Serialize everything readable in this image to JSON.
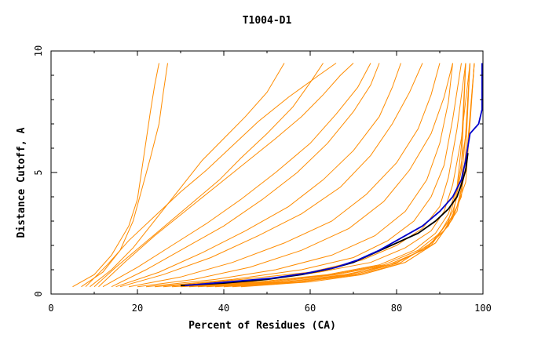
{
  "chart_data": {
    "type": "line",
    "title": "T1004-D1",
    "xlabel": "Percent of Residues (CA)",
    "ylabel": "Distance Cutoff, A",
    "xlim": [
      0,
      100
    ],
    "ylim": [
      0,
      10
    ],
    "x_ticks": [
      "0",
      "20",
      "40",
      "60",
      "80",
      "100"
    ],
    "y_ticks": [
      "0",
      "5",
      "10"
    ],
    "grid": false,
    "legend": "none",
    "colors": {
      "models": "#ff8c00",
      "highlight_blue": "#0000cc",
      "highlight_black": "#000000",
      "frame": "#000000"
    },
    "series": [
      {
        "color": "#ff8c00",
        "x": [
          5,
          10,
          14,
          18,
          20,
          21,
          22,
          23,
          24,
          25
        ],
        "y": [
          0.3,
          0.8,
          1.6,
          2.8,
          3.9,
          5.1,
          6.3,
          7.5,
          8.6,
          9.5
        ]
      },
      {
        "color": "#ff8c00",
        "x": [
          7,
          12,
          16,
          19,
          21,
          23,
          25,
          26,
          27
        ],
        "y": [
          0.3,
          0.9,
          1.8,
          3,
          4.3,
          5.6,
          7,
          8.3,
          9.5
        ]
      },
      {
        "color": "#ff8c00",
        "x": [
          9,
          14,
          19,
          23,
          27,
          31,
          35,
          40,
          45,
          50,
          54
        ],
        "y": [
          0.3,
          1,
          1.9,
          2.8,
          3.7,
          4.6,
          5.5,
          6.4,
          7.3,
          8.3,
          9.5
        ]
      },
      {
        "color": "#ff8c00",
        "x": [
          10,
          15,
          21,
          27,
          33,
          39,
          44,
          50,
          56,
          60,
          63
        ],
        "y": [
          0.3,
          1.1,
          2,
          2.9,
          3.8,
          4.7,
          5.6,
          6.6,
          7.7,
          8.7,
          9.5
        ]
      },
      {
        "color": "#ff8c00",
        "x": [
          8,
          13,
          18,
          24,
          30,
          36,
          42,
          48,
          55,
          62,
          66
        ],
        "y": [
          0.3,
          1.2,
          2.2,
          3.2,
          4.2,
          5.1,
          6.1,
          7.1,
          8.1,
          9,
          9.5
        ]
      },
      {
        "color": "#ff8c00",
        "x": [
          11,
          17,
          24,
          31,
          38,
          45,
          52,
          58,
          63,
          67,
          70
        ],
        "y": [
          0.3,
          1.3,
          2.4,
          3.4,
          4.4,
          5.4,
          6.4,
          7.3,
          8.2,
          9,
          9.5
        ]
      },
      {
        "color": "#ff8c00",
        "x": [
          12,
          20,
          28,
          36,
          44,
          52,
          60,
          66,
          71,
          74
        ],
        "y": [
          0.3,
          1.1,
          2,
          2.9,
          3.9,
          5,
          6.2,
          7.4,
          8.5,
          9.5
        ]
      },
      {
        "color": "#ff8c00",
        "x": [
          14,
          22,
          31,
          40,
          49,
          57,
          64,
          70,
          74,
          76
        ],
        "y": [
          0.3,
          1,
          1.9,
          2.8,
          3.9,
          5,
          6.2,
          7.5,
          8.6,
          9.5
        ]
      },
      {
        "color": "#ff8c00",
        "x": [
          15,
          25,
          35,
          45,
          55,
          63,
          70,
          76,
          79,
          81
        ],
        "y": [
          0.3,
          0.9,
          1.7,
          2.6,
          3.6,
          4.7,
          5.9,
          7.3,
          8.5,
          9.5
        ]
      },
      {
        "color": "#ff8c00",
        "x": [
          16,
          26,
          37,
          48,
          58,
          67,
          74,
          79,
          83,
          86
        ],
        "y": [
          0.3,
          0.8,
          1.5,
          2.4,
          3.3,
          4.4,
          5.7,
          7,
          8.3,
          9.5
        ]
      },
      {
        "color": "#ff8c00",
        "x": [
          18,
          30,
          42,
          54,
          65,
          73,
          80,
          85,
          88,
          90
        ],
        "y": [
          0.3,
          0.7,
          1.3,
          2.1,
          3,
          4.1,
          5.4,
          6.8,
          8.2,
          9.5
        ]
      },
      {
        "color": "#ff8c00",
        "x": [
          20,
          33,
          46,
          58,
          69,
          77,
          83,
          88,
          91,
          93
        ],
        "y": [
          0.3,
          0.6,
          1.1,
          1.8,
          2.7,
          3.8,
          5.1,
          6.6,
          8.1,
          9.5
        ]
      },
      {
        "color": "#ff8c00",
        "x": [
          22,
          38,
          52,
          65,
          75,
          82,
          87,
          90,
          92,
          93
        ],
        "y": [
          0.3,
          0.6,
          1,
          1.6,
          2.4,
          3.4,
          4.7,
          6.2,
          7.9,
          9.5
        ]
      },
      {
        "color": "#ff8c00",
        "x": [
          24,
          42,
          58,
          70,
          78,
          84,
          88,
          91,
          93,
          95
        ],
        "y": [
          0.3,
          0.6,
          1,
          1.5,
          2.2,
          3,
          4,
          5.3,
          7.2,
          9.5
        ]
      },
      {
        "color": "#ff8c00",
        "x": [
          26,
          44,
          60,
          72,
          80,
          86,
          90,
          92,
          94,
          96
        ],
        "y": [
          0.3,
          0.6,
          0.9,
          1.4,
          2,
          2.7,
          3.6,
          4.8,
          6.8,
          9.5
        ]
      },
      {
        "color": "#ff8c00",
        "x": [
          28,
          46,
          62,
          74,
          82,
          88,
          91,
          93,
          95,
          97
        ],
        "y": [
          0.3,
          0.5,
          0.9,
          1.3,
          1.9,
          2.6,
          3.4,
          4.5,
          6.4,
          9.5
        ]
      },
      {
        "color": "#ff8c00",
        "x": [
          30,
          48,
          64,
          76,
          84,
          89,
          92,
          94,
          95,
          96
        ],
        "y": [
          0.3,
          0.5,
          0.8,
          1.2,
          1.8,
          2.5,
          3.3,
          4.4,
          6.1,
          9.5
        ]
      },
      {
        "color": "#ff8c00",
        "x": [
          32,
          50,
          65,
          77,
          85,
          90,
          93,
          95,
          96,
          97
        ],
        "y": [
          0.3,
          0.5,
          0.8,
          1.2,
          1.8,
          2.5,
          3.4,
          4.6,
          6.6,
          9.5
        ]
      },
      {
        "color": "#ff8c00",
        "x": [
          34,
          52,
          66,
          78,
          86,
          91,
          94,
          96,
          97,
          98
        ],
        "y": [
          0.3,
          0.5,
          0.8,
          1.2,
          1.8,
          2.6,
          3.6,
          5.1,
          7.2,
          9.5
        ]
      },
      {
        "color": "#ff8c00",
        "x": [
          36,
          54,
          68,
          79,
          87,
          92,
          95,
          96,
          97
        ],
        "y": [
          0.3,
          0.5,
          0.8,
          1.2,
          1.9,
          2.8,
          4,
          5.8,
          9.5
        ]
      },
      {
        "color": "#ff8c00",
        "x": [
          38,
          55,
          69,
          80,
          88,
          92,
          94,
          96,
          97
        ],
        "y": [
          0.3,
          0.5,
          0.8,
          1.3,
          2,
          3,
          4.3,
          6.5,
          9.5
        ]
      },
      {
        "color": "#ff8c00",
        "x": [
          40,
          57,
          70,
          81,
          88,
          93,
          95,
          96
        ],
        "y": [
          0.3,
          0.5,
          0.8,
          1.3,
          2.1,
          3.2,
          5.1,
          9.5
        ]
      },
      {
        "color": "#ff8c00",
        "x": [
          42,
          58,
          71,
          82,
          89,
          93,
          96,
          97,
          98
        ],
        "y": [
          0.3,
          0.5,
          0.8,
          1.3,
          2.1,
          3.1,
          4.6,
          7,
          9.5
        ]
      },
      {
        "color": "#ff8c00",
        "x": [
          44,
          60,
          72,
          82,
          89,
          94,
          96,
          98
        ],
        "y": [
          0.3,
          0.5,
          0.8,
          1.3,
          2.1,
          3.4,
          5.2,
          9.5
        ]
      },
      {
        "color": "#000000",
        "x": [
          30,
          40,
          50,
          58,
          65,
          70,
          75,
          80,
          85,
          89,
          92,
          94,
          95,
          96,
          96.5
        ],
        "y": [
          0.35,
          0.45,
          0.6,
          0.8,
          1.05,
          1.3,
          1.7,
          2.1,
          2.5,
          3,
          3.5,
          4,
          4.5,
          5.1,
          5.8
        ]
      },
      {
        "color": "#0000cc",
        "x": [
          31,
          41,
          51,
          59,
          66,
          71,
          76,
          81,
          86,
          90,
          93,
          95,
          96,
          97,
          99,
          99.8,
          99.8
        ],
        "y": [
          0.35,
          0.5,
          0.65,
          0.85,
          1.1,
          1.4,
          1.8,
          2.3,
          2.8,
          3.4,
          4,
          4.7,
          5.5,
          6.6,
          7,
          7.6,
          9.5
        ]
      }
    ]
  }
}
